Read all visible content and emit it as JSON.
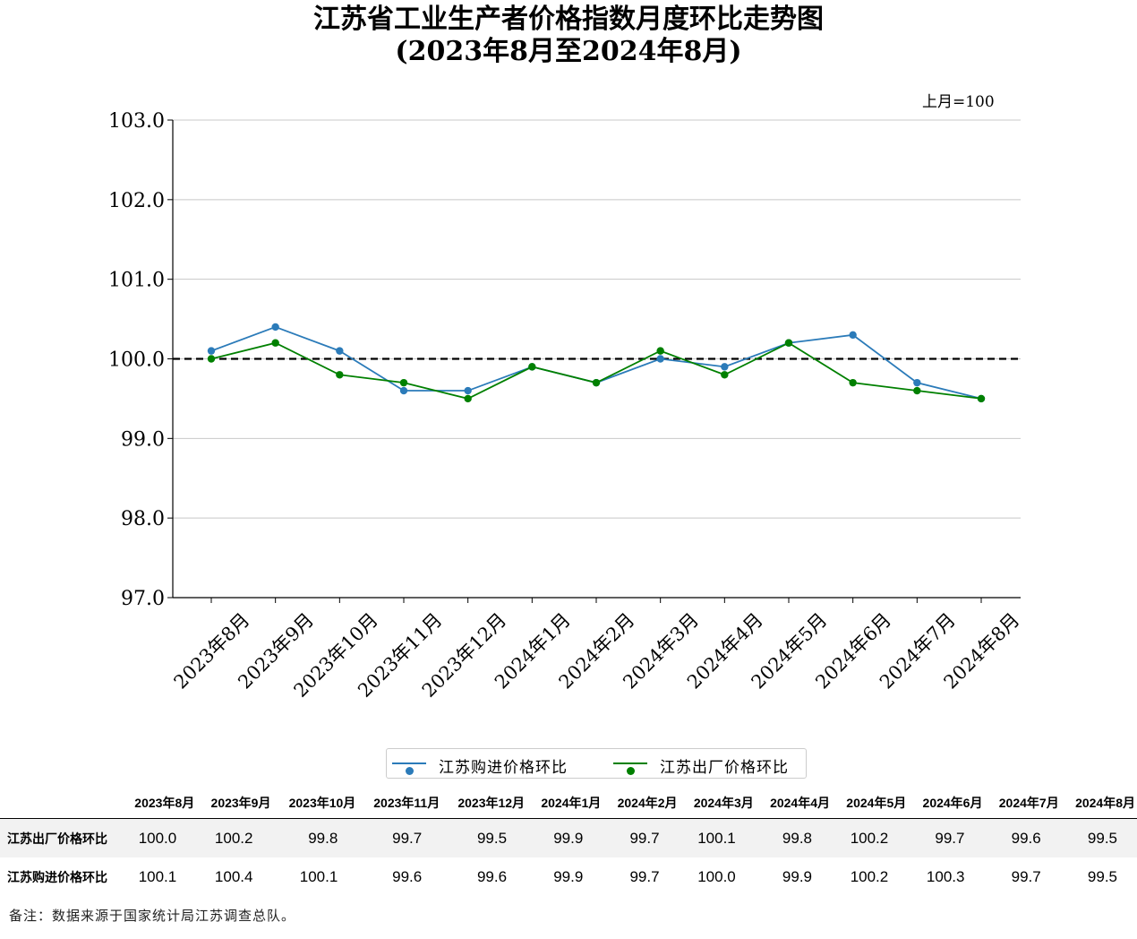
{
  "chart_data": {
    "type": "line",
    "title": "江苏省工业生产者价格指数月度环比走势图",
    "subtitle": "(2023年8月至2024年8月)",
    "unit_note": "上月=100",
    "categories": [
      "2023年8月",
      "2023年9月",
      "2023年10月",
      "2023年11月",
      "2023年12月",
      "2024年1月",
      "2024年2月",
      "2024年3月",
      "2024年4月",
      "2024年5月",
      "2024年6月",
      "2024年7月",
      "2024年8月"
    ],
    "series": [
      {
        "name": "江苏购进价格环比",
        "color": "#2b7bb9",
        "values": [
          100.1,
          100.4,
          100.1,
          99.6,
          99.6,
          99.9,
          99.7,
          100.0,
          99.9,
          100.2,
          100.3,
          99.7,
          99.5
        ]
      },
      {
        "name": "江苏出厂价格环比",
        "color": "#008000",
        "values": [
          100.0,
          100.2,
          99.8,
          99.7,
          99.5,
          99.9,
          99.7,
          100.1,
          99.8,
          100.2,
          99.7,
          99.6,
          99.5
        ]
      }
    ],
    "ylim": [
      97.0,
      103.0
    ],
    "yticks": [
      "97.0",
      "98.0",
      "99.0",
      "100.0",
      "101.0",
      "102.0",
      "103.0"
    ],
    "reference_line": 100.0,
    "grid": "horizontal",
    "legend_position": "bottom-center"
  },
  "table": {
    "headers": [
      "2023年8月",
      "2023年9月",
      "2023年10月",
      "2023年11月",
      "2023年12月",
      "2024年1月",
      "2024年2月",
      "2024年3月",
      "2024年4月",
      "2024年5月",
      "2024年6月",
      "2024年7月",
      "2024年8月"
    ],
    "rows": [
      {
        "label": "江苏出厂价格环比",
        "values": [
          "100.0",
          "100.2",
          "99.8",
          "99.7",
          "99.5",
          "99.9",
          "99.7",
          "100.1",
          "99.8",
          "100.2",
          "99.7",
          "99.6",
          "99.5"
        ]
      },
      {
        "label": "江苏购进价格环比",
        "values": [
          "100.1",
          "100.4",
          "100.1",
          "99.6",
          "99.6",
          "99.9",
          "99.7",
          "100.0",
          "99.9",
          "100.2",
          "100.3",
          "99.7",
          "99.5"
        ]
      }
    ]
  },
  "footnote": "备注：数据来源于国家统计局江苏调查总队。"
}
